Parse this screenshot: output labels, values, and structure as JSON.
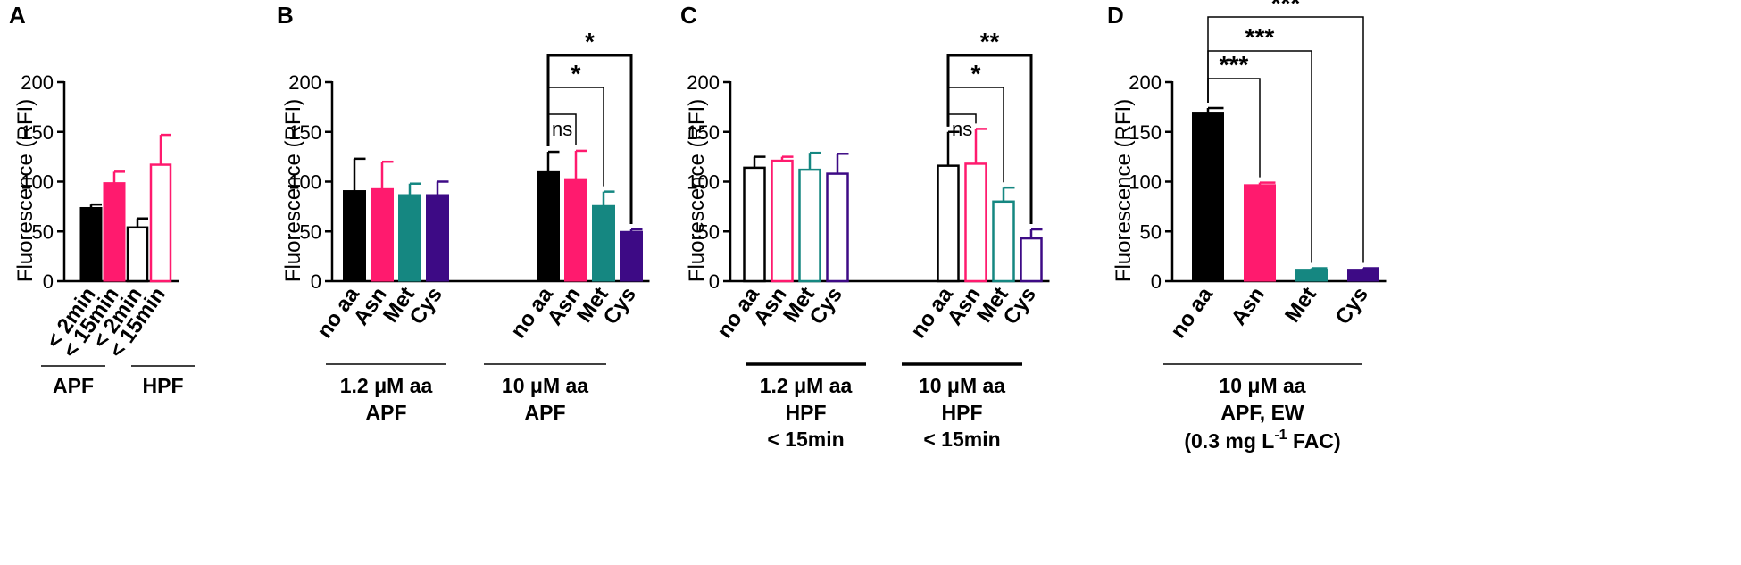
{
  "colors": {
    "black": "#000000",
    "pink": "#ff1a6e",
    "teal": "#158781",
    "purple": "#3d0a85"
  },
  "y_label": "Fluorescence (RFI)",
  "chart_data": [
    {
      "panel": "A",
      "type": "bar",
      "ylabel": "Fluorescence (RFI)",
      "ylim": [
        0,
        200
      ],
      "yticks": [
        "0",
        "50",
        "100",
        "150",
        "200"
      ],
      "categories": [
        "< 2min",
        "< 15min",
        "< 2min",
        "< 15min"
      ],
      "values": [
        74,
        99,
        54,
        117
      ],
      "errors": [
        3,
        11,
        9,
        30
      ],
      "fills": [
        "black",
        "pink",
        "none",
        "none"
      ],
      "strokes": [
        "black",
        "pink",
        "black",
        "pink"
      ],
      "groups": [
        {
          "lines": [
            "APF"
          ],
          "from": 0,
          "to": 1
        },
        {
          "lines": [
            "HPF"
          ],
          "from": 2,
          "to": 3
        }
      ],
      "comparisons": []
    },
    {
      "panel": "B",
      "type": "bar",
      "ylabel": "Fluorescence (RFI)",
      "ylim": [
        0,
        200
      ],
      "yticks": [
        "0",
        "50",
        "100",
        "150",
        "200"
      ],
      "categories": [
        "no aa",
        "Asn",
        "Met",
        "Cys",
        "no aa",
        "Asn",
        "Met",
        "Cys"
      ],
      "values": [
        91,
        93,
        87,
        87,
        110,
        103,
        76,
        50
      ],
      "errors": [
        32,
        27,
        11,
        13,
        20,
        28,
        14,
        2
      ],
      "fills": [
        "black",
        "pink",
        "teal",
        "purple",
        "black",
        "pink",
        "teal",
        "purple"
      ],
      "strokes": [
        "black",
        "pink",
        "teal",
        "purple",
        "black",
        "pink",
        "teal",
        "purple"
      ],
      "groups": [
        {
          "lines": [
            "1.2 μM aa",
            "APF"
          ],
          "from": 0,
          "to": 3
        },
        {
          "lines": [
            "10 μM aa",
            "APF"
          ],
          "from": 4,
          "to": 7
        }
      ],
      "comparisons": [
        {
          "from": 4,
          "to": 5,
          "label": "ns"
        },
        {
          "from": 4,
          "to": 6,
          "label": "*"
        },
        {
          "from": 4,
          "to": 7,
          "label": "*"
        }
      ]
    },
    {
      "panel": "C",
      "type": "bar",
      "ylabel": "Fluorescence (RFI)",
      "ylim": [
        0,
        200
      ],
      "yticks": [
        "0",
        "50",
        "100",
        "150",
        "200"
      ],
      "categories": [
        "no aa",
        "Asn",
        "Met",
        "Cys",
        "no aa",
        "Asn",
        "Met",
        "Cys"
      ],
      "values": [
        114,
        121,
        112,
        108,
        116,
        118,
        80,
        43
      ],
      "errors": [
        11,
        4,
        17,
        20,
        34,
        35,
        14,
        9
      ],
      "fills": [
        "none",
        "none",
        "none",
        "none",
        "none",
        "none",
        "none",
        "none"
      ],
      "strokes": [
        "black",
        "pink",
        "teal",
        "purple",
        "black",
        "pink",
        "teal",
        "purple"
      ],
      "groups": [
        {
          "lines": [
            "1.2 μM aa",
            "HPF",
            "< 15min"
          ],
          "from": 0,
          "to": 3
        },
        {
          "lines": [
            "10 μM aa",
            "HPF",
            "< 15min"
          ],
          "from": 4,
          "to": 7
        }
      ],
      "comparisons": [
        {
          "from": 4,
          "to": 5,
          "label": "ns"
        },
        {
          "from": 4,
          "to": 6,
          "label": "*"
        },
        {
          "from": 4,
          "to": 7,
          "label": "**"
        }
      ]
    },
    {
      "panel": "D",
      "type": "bar",
      "ylabel": "Fluorescence (RFI)",
      "ylim": [
        0,
        200
      ],
      "yticks": [
        "0",
        "50",
        "100",
        "150",
        "200"
      ],
      "categories": [
        "no aa",
        "Asn",
        "Met",
        "Cys"
      ],
      "values": [
        169,
        97,
        12,
        12
      ],
      "errors": [
        5,
        2,
        1,
        1
      ],
      "fills": [
        "black",
        "pink",
        "teal",
        "purple"
      ],
      "strokes": [
        "black",
        "pink",
        "teal",
        "purple"
      ],
      "groups": [
        {
          "lines": [
            "10 μM aa",
            "APF, EW",
            "(0.3 mg L",
            "-1",
            " FAC)"
          ],
          "from": 0,
          "to": 3
        }
      ],
      "comparisons": [
        {
          "from": 0,
          "to": 1,
          "label": "***"
        },
        {
          "from": 0,
          "to": 2,
          "label": "***"
        },
        {
          "from": 0,
          "to": 3,
          "label": "***"
        }
      ]
    }
  ]
}
